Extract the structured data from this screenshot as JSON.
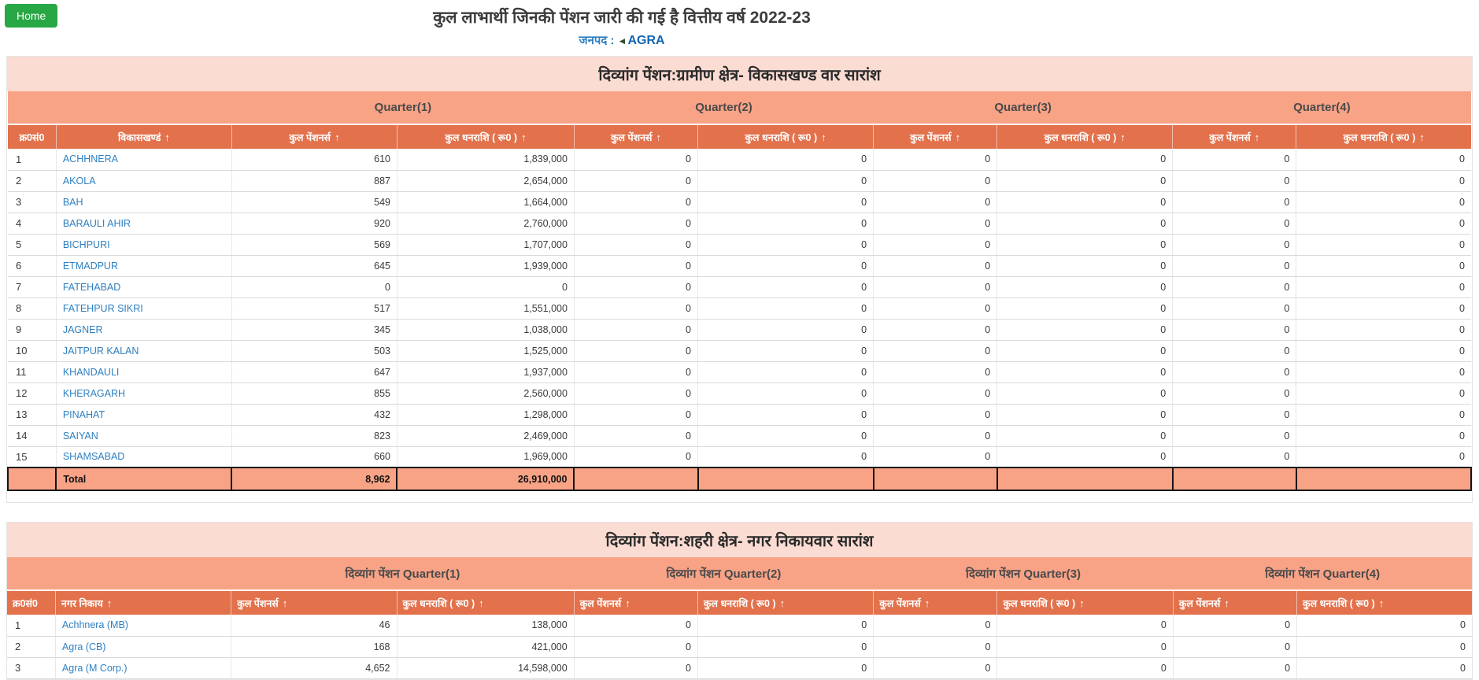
{
  "page": {
    "home_button": "Home",
    "title": "कुल लाभार्थी जिनकी पेंशन जारी की गई है वित्तीय वर्ष 2022-23",
    "district_label": "जनपद :",
    "back_icon": "◄",
    "district_value": "AGRA"
  },
  "ui": {
    "sort_icon": "↑"
  },
  "colors": {
    "header_bg": "#e2714c",
    "quarter_bg": "#f8a386",
    "title_bg": "#fbdcd2",
    "total_bg": "#f8a386",
    "link": "#2d7fc1",
    "home_green": "#28a745"
  },
  "rural": {
    "title": "दिव्यांग पेंशन:ग्रामीण क्षेत्र- विकासखण्ड वार सारांश",
    "quarters": [
      "Quarter(1)",
      "Quarter(2)",
      "Quarter(3)",
      "Quarter(4)"
    ],
    "headers": {
      "sno": "क्र0सं0",
      "name": "विकासखण्डं",
      "pensioners": "कुल पेंशनर्स",
      "amount": "कुल धनराशि ( रू0 )"
    },
    "rows": [
      [
        "1",
        "ACHHNERA",
        "610",
        "1,839,000",
        "0",
        "0",
        "0",
        "0",
        "0",
        "0"
      ],
      [
        "2",
        "AKOLA",
        "887",
        "2,654,000",
        "0",
        "0",
        "0",
        "0",
        "0",
        "0"
      ],
      [
        "3",
        "BAH",
        "549",
        "1,664,000",
        "0",
        "0",
        "0",
        "0",
        "0",
        "0"
      ],
      [
        "4",
        "BARAULI AHIR",
        "920",
        "2,760,000",
        "0",
        "0",
        "0",
        "0",
        "0",
        "0"
      ],
      [
        "5",
        "BICHPURI",
        "569",
        "1,707,000",
        "0",
        "0",
        "0",
        "0",
        "0",
        "0"
      ],
      [
        "6",
        "ETMADPUR",
        "645",
        "1,939,000",
        "0",
        "0",
        "0",
        "0",
        "0",
        "0"
      ],
      [
        "7",
        "FATEHABAD",
        "0",
        "0",
        "0",
        "0",
        "0",
        "0",
        "0",
        "0"
      ],
      [
        "8",
        "FATEHPUR SIKRI",
        "517",
        "1,551,000",
        "0",
        "0",
        "0",
        "0",
        "0",
        "0"
      ],
      [
        "9",
        "JAGNER",
        "345",
        "1,038,000",
        "0",
        "0",
        "0",
        "0",
        "0",
        "0"
      ],
      [
        "10",
        "JAITPUR KALAN",
        "503",
        "1,525,000",
        "0",
        "0",
        "0",
        "0",
        "0",
        "0"
      ],
      [
        "11",
        "KHANDAULI",
        "647",
        "1,937,000",
        "0",
        "0",
        "0",
        "0",
        "0",
        "0"
      ],
      [
        "12",
        "KHERAGARH",
        "855",
        "2,560,000",
        "0",
        "0",
        "0",
        "0",
        "0",
        "0"
      ],
      [
        "13",
        "PINAHAT",
        "432",
        "1,298,000",
        "0",
        "0",
        "0",
        "0",
        "0",
        "0"
      ],
      [
        "14",
        "SAIYAN",
        "823",
        "2,469,000",
        "0",
        "0",
        "0",
        "0",
        "0",
        "0"
      ],
      [
        "15",
        "SHAMSABAD",
        "660",
        "1,969,000",
        "0",
        "0",
        "0",
        "0",
        "0",
        "0"
      ]
    ],
    "total": {
      "label": "Total",
      "q1_pensioners": "8,962",
      "q1_amount": "26,910,000"
    }
  },
  "urban": {
    "title": "दिव्यांग पेंशन:शहरी क्षेत्र- नगर निकायवार सारांश",
    "quarters": [
      "दिव्यांग पेंशन Quarter(1)",
      "दिव्यांग पेंशन Quarter(2)",
      "दिव्यांग पेंशन Quarter(3)",
      "दिव्यांग पेंशन Quarter(4)"
    ],
    "headers": {
      "sno": "क्र0सं0",
      "name": "नगर निकाय",
      "pensioners": "कुल पेंशनर्स",
      "amount": "कुल धनराशि ( रू0 )"
    },
    "rows": [
      [
        "1",
        "Achhnera (MB)",
        "46",
        "138,000",
        "0",
        "0",
        "0",
        "0",
        "0",
        "0"
      ],
      [
        "2",
        "Agra (CB)",
        "168",
        "421,000",
        "0",
        "0",
        "0",
        "0",
        "0",
        "0"
      ],
      [
        "3",
        "Agra (M Corp.)",
        "4,652",
        "14,598,000",
        "0",
        "0",
        "0",
        "0",
        "0",
        "0"
      ]
    ]
  }
}
